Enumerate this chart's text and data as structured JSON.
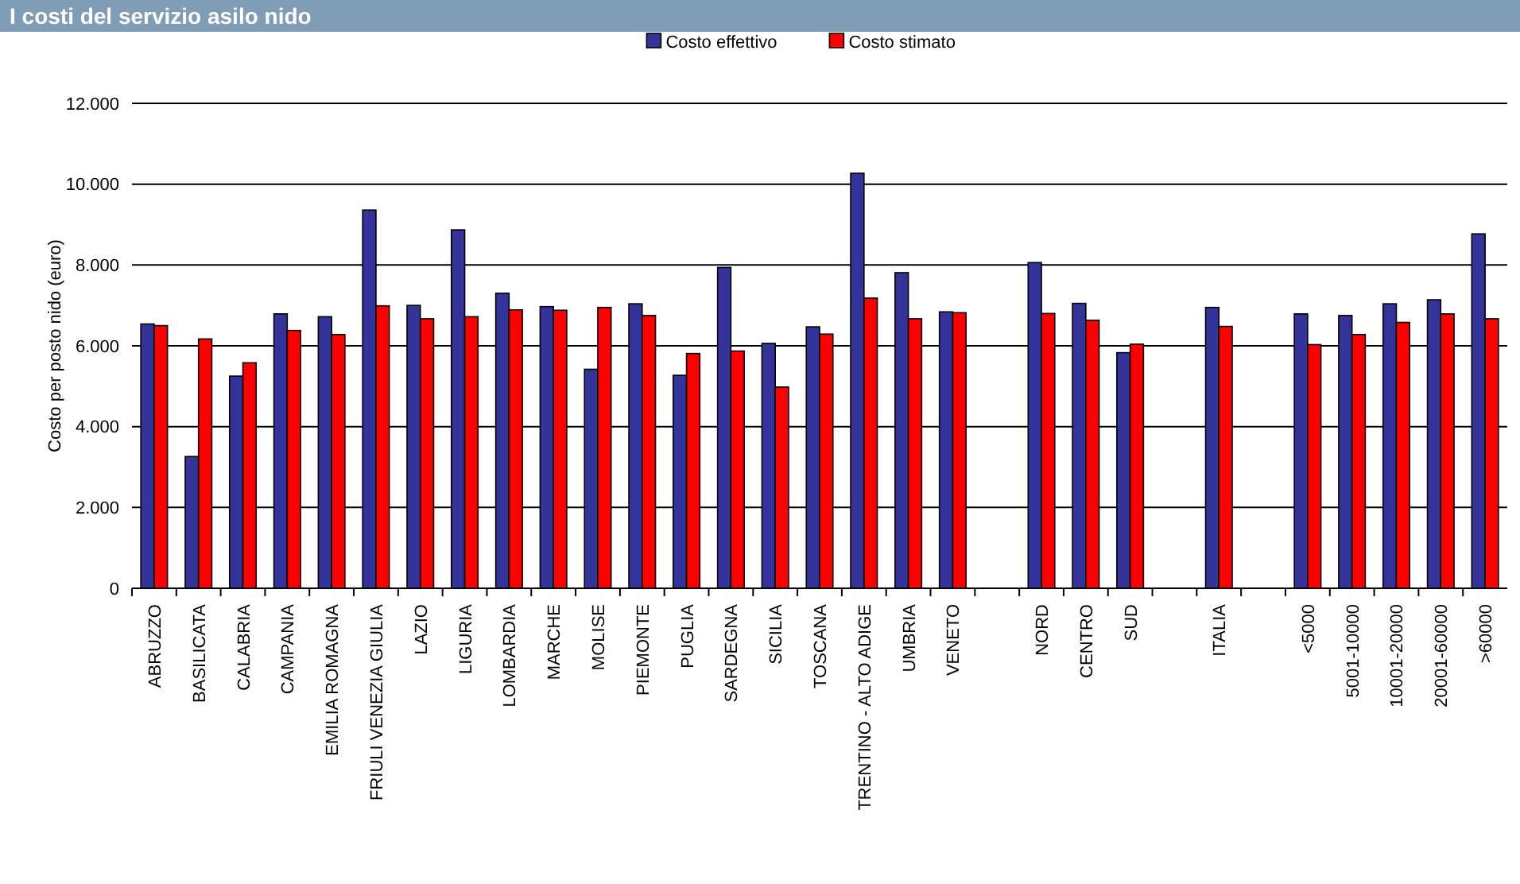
{
  "chart_data": {
    "type": "bar",
    "title": "I costi del servizio asilo nido",
    "ylabel": "Costo per posto nido (euro)",
    "categories": [
      "ABRUZZO",
      "BASILICATA",
      "CALABRIA",
      "CAMPANIA",
      "EMILIA ROMAGNA",
      "FRIULI VENEZIA GIULIA",
      "LAZIO",
      "LIGURIA",
      "LOMBARDIA",
      "MARCHE",
      "MOLISE",
      "PIEMONTE",
      "PUGLIA",
      "SARDEGNA",
      "SICILIA",
      "TOSCANA",
      "TRENTINO - ALTO ADIGE",
      "UMBRIA",
      "VENETO",
      null,
      "NORD",
      "CENTRO",
      "SUD",
      null,
      "ITALIA",
      null,
      "<5000",
      "5001-10000",
      "10001-20000",
      "20001-60000",
      ">60000"
    ],
    "series": [
      {
        "name": "Costo effettivo",
        "color": "#333399",
        "values": [
          6540,
          3260,
          5250,
          6790,
          6720,
          9360,
          7000,
          8870,
          7300,
          6970,
          5420,
          7040,
          5270,
          7940,
          6060,
          6470,
          10270,
          7810,
          6840,
          null,
          8060,
          7050,
          5830,
          null,
          6950,
          null,
          6790,
          6750,
          7040,
          7140,
          8770
        ]
      },
      {
        "name": "Costo stimato",
        "color": "#ff0000",
        "values": [
          6500,
          6170,
          5580,
          6380,
          6280,
          6990,
          6670,
          6720,
          6890,
          6880,
          6950,
          6750,
          5810,
          5870,
          4980,
          6290,
          7180,
          6670,
          6820,
          null,
          6800,
          6630,
          6040,
          null,
          6480,
          null,
          6030,
          6280,
          6580,
          6790,
          6670
        ]
      }
    ],
    "ylim": [
      0,
      12000
    ],
    "yticks": [
      {
        "value": 0,
        "label": "0"
      },
      {
        "value": 2000,
        "label": "2.000"
      },
      {
        "value": 4000,
        "label": "4.000"
      },
      {
        "value": 6000,
        "label": "6.000"
      },
      {
        "value": 8000,
        "label": "8.000"
      },
      {
        "value": 10000,
        "label": "10.000"
      },
      {
        "value": 12000,
        "label": "12.000"
      }
    ],
    "grid": "y",
    "legend": "top"
  }
}
